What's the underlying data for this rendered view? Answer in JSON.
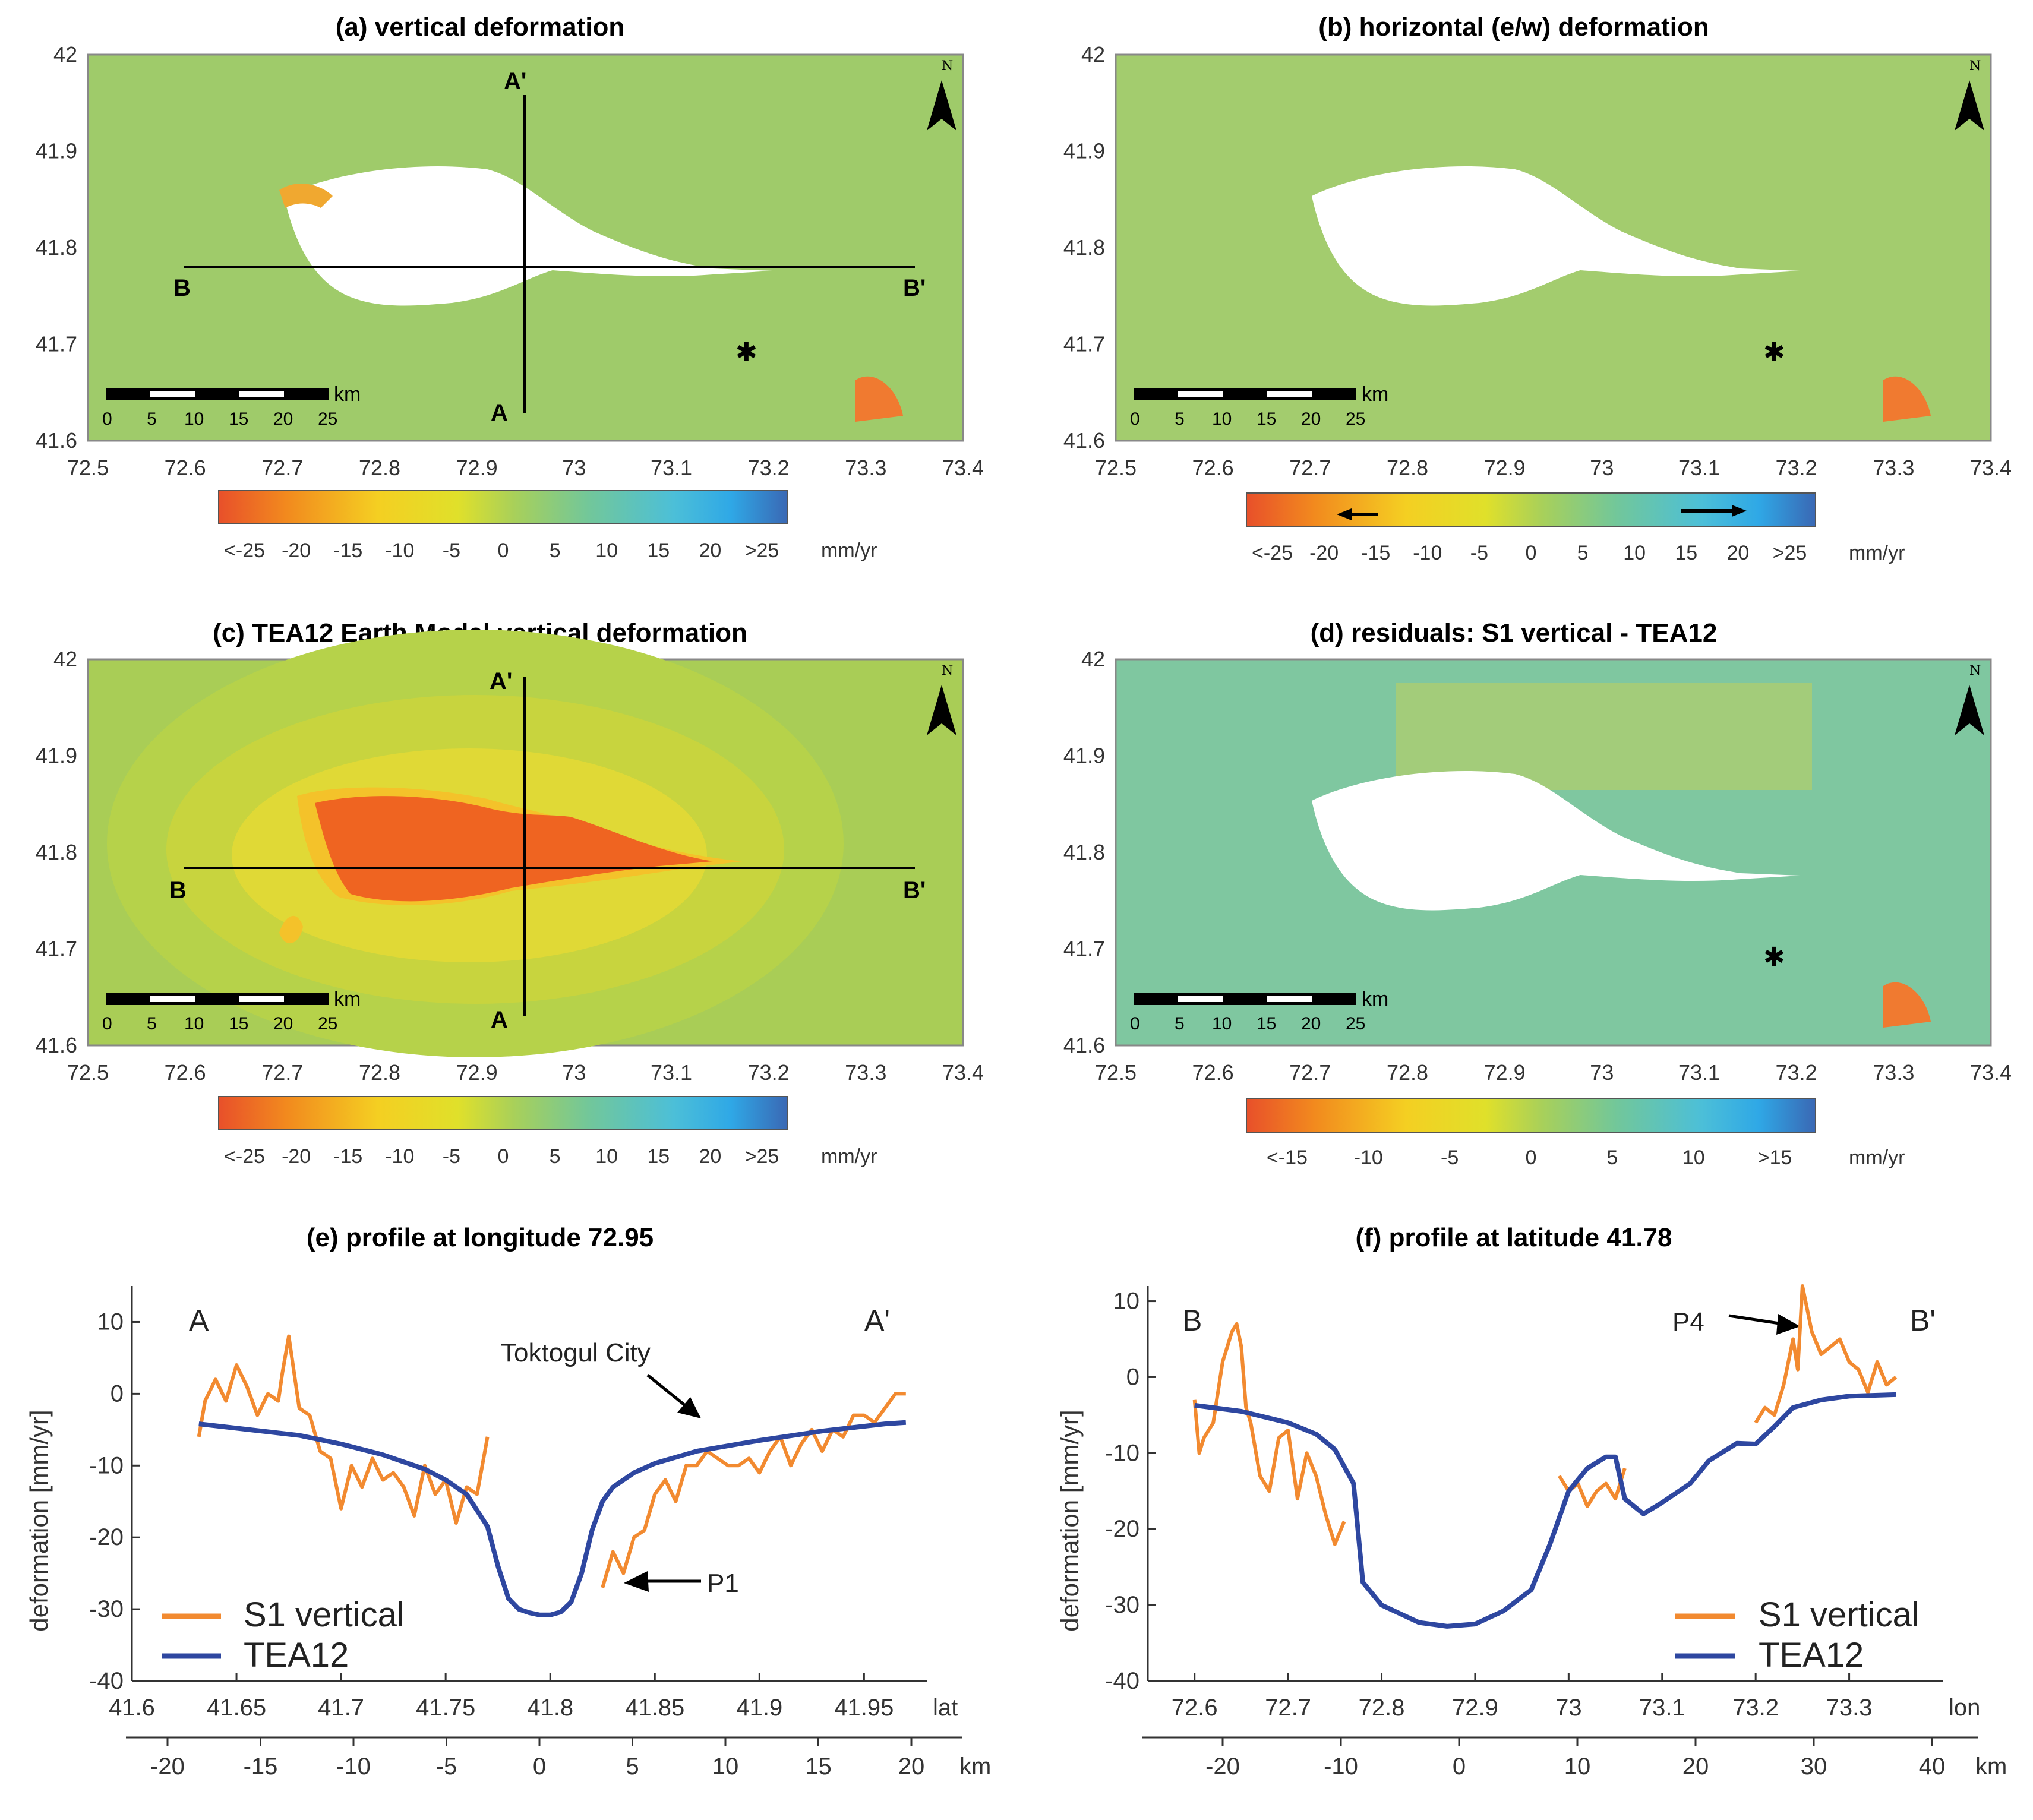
{
  "panels": {
    "a": {
      "title": "(a) vertical deformation",
      "colorbar": {
        "ticks": [
          "<-25",
          "-20",
          "-15",
          "-10",
          "-5",
          "0",
          "5",
          "10",
          "15",
          "20",
          ">25"
        ],
        "unit": "mm/yr"
      },
      "section_labels": {
        "A": "A",
        "A_prime": "A'",
        "B": "B",
        "B_prime": "B'"
      }
    },
    "b": {
      "title": "(b) horizontal (e/w) deformation",
      "colorbar": {
        "ticks": [
          "<-25",
          "-20",
          "-15",
          "-10",
          "-5",
          "0",
          "5",
          "10",
          "15",
          "20",
          ">25"
        ],
        "unit": "mm/yr"
      }
    },
    "c": {
      "title": "(c) TEA12 Earth Model vertical deformation",
      "colorbar": {
        "ticks": [
          "<-25",
          "-20",
          "-15",
          "-10",
          "-5",
          "0",
          "5",
          "10",
          "15",
          "20",
          ">25"
        ],
        "unit": "mm/yr"
      },
      "section_labels": {
        "A": "A",
        "A_prime": "A'",
        "B": "B",
        "B_prime": "B'"
      }
    },
    "d": {
      "title": "(d) residuals: S1 vertical - TEA12",
      "colorbar": {
        "ticks": [
          "<-15",
          "-10",
          "-5",
          "0",
          "5",
          "10",
          ">15"
        ],
        "unit": "mm/yr"
      }
    },
    "e": {
      "title": "(e) profile at longitude 72.95",
      "ylabel": "deformation [mm/yr]",
      "x_axis_label": "lat",
      "km_axis_label": "km",
      "ends": {
        "left": "A",
        "right": "A'"
      },
      "annotations": {
        "city": "Toktogul City",
        "p1": "P1"
      }
    },
    "f": {
      "title": "(f) profile at latitude 41.78",
      "ylabel": "deformation [mm/yr]",
      "x_axis_label": "lon",
      "km_axis_label": "km",
      "ends": {
        "left": "B",
        "right": "B'"
      },
      "annotations": {
        "p4": "P4"
      }
    }
  },
  "map_axes": {
    "x_ticks": [
      "72.5",
      "72.6",
      "72.7",
      "72.8",
      "72.9",
      "73",
      "73.1",
      "73.2",
      "73.3",
      "73.4"
    ],
    "y_ticks": [
      "42",
      "41.9",
      "41.8",
      "41.7",
      "41.6"
    ],
    "scalebar_ticks": [
      "0",
      "5",
      "10",
      "15",
      "20",
      "25"
    ],
    "scalebar_unit": "km",
    "north": "N"
  },
  "legend": {
    "s1": "S1 vertical",
    "tea": "TEA12"
  },
  "colors": {
    "s1": "#f28a30",
    "tea": "#2e47a0",
    "map_base": "#9fcb6a",
    "colorbar_neg": "#e8502a",
    "colorbar_pos": "#3a68b4"
  },
  "chart_data": [
    {
      "type": "line",
      "panel": "e",
      "xlabel": "lat",
      "ylabel": "deformation [mm/yr]",
      "xlim": [
        41.6,
        41.98
      ],
      "ylim": [
        -40,
        15
      ],
      "x_ticks": [
        41.6,
        41.65,
        41.7,
        41.75,
        41.8,
        41.85,
        41.9,
        41.95
      ],
      "y_ticks": [
        10,
        0,
        -10,
        -20,
        -30,
        -40
      ],
      "km_ticks": [
        -20,
        -15,
        -10,
        -5,
        0,
        5,
        10,
        15,
        20
      ],
      "series": [
        {
          "name": "S1 vertical",
          "x": [
            41.632,
            41.635,
            41.64,
            41.645,
            41.65,
            41.655,
            41.66,
            41.665,
            41.67,
            41.672,
            41.675,
            41.68,
            41.685,
            41.69,
            41.695,
            41.7,
            41.705,
            41.71,
            41.715,
            41.72,
            41.725,
            41.73,
            41.735,
            41.74,
            41.745,
            41.75,
            41.755,
            41.76,
            41.765,
            41.77,
            41.825,
            41.83,
            41.835,
            41.84,
            41.845,
            41.85,
            41.855,
            41.86,
            41.865,
            41.87,
            41.875,
            41.88,
            41.885,
            41.89,
            41.895,
            41.9,
            41.905,
            41.91,
            41.915,
            41.92,
            41.925,
            41.93,
            41.935,
            41.94,
            41.945,
            41.95,
            41.955,
            41.96,
            41.965,
            41.97
          ],
          "y": [
            -6,
            -1,
            2,
            -1,
            4,
            1,
            -3,
            0,
            -1,
            3,
            8,
            -2,
            -3,
            -8,
            -9,
            -16,
            -10,
            -13,
            -9,
            -12,
            -11,
            -13,
            -17,
            -10,
            -14,
            -12,
            -18,
            -13,
            -14,
            -6,
            -27,
            -22,
            -25,
            -20,
            -19,
            -14,
            -12,
            -15,
            -10,
            -10,
            -8,
            -9,
            -10,
            -10,
            -9,
            -11,
            -8,
            -6,
            -10,
            -7,
            -5,
            -8,
            -5,
            -6,
            -3,
            -3,
            -4,
            -2,
            0,
            0
          ]
        },
        {
          "name": "TEA12",
          "x": [
            41.632,
            41.65,
            41.68,
            41.7,
            41.72,
            41.74,
            41.75,
            41.76,
            41.77,
            41.775,
            41.78,
            41.785,
            41.79,
            41.795,
            41.8,
            41.805,
            41.81,
            41.815,
            41.82,
            41.825,
            41.83,
            41.84,
            41.85,
            41.87,
            41.9,
            41.93,
            41.96,
            41.97
          ],
          "y": [
            -4.2,
            -4.8,
            -5.8,
            -7,
            -8.5,
            -10.5,
            -12,
            -14,
            -18.5,
            -24,
            -28.5,
            -30,
            -30.5,
            -30.8,
            -30.8,
            -30.4,
            -29,
            -25,
            -19,
            -15,
            -13,
            -11,
            -9.7,
            -8,
            -6.5,
            -5.2,
            -4.2,
            -4
          ]
        }
      ]
    },
    {
      "type": "line",
      "panel": "f",
      "xlabel": "lon",
      "ylabel": "deformation [mm/yr]",
      "xlim": [
        72.55,
        73.4
      ],
      "ylim": [
        -40,
        12
      ],
      "x_ticks": [
        72.6,
        72.7,
        72.8,
        72.9,
        73,
        73.1,
        73.2,
        73.3
      ],
      "y_ticks": [
        10,
        0,
        -10,
        -20,
        -30,
        -40
      ],
      "km_ticks": [
        -20,
        -10,
        0,
        10,
        20,
        30,
        40
      ],
      "series": [
        {
          "name": "S1 vertical",
          "x": [
            72.6,
            72.605,
            72.61,
            72.62,
            72.63,
            72.64,
            72.645,
            72.65,
            72.655,
            72.66,
            72.67,
            72.68,
            72.69,
            72.7,
            72.71,
            72.72,
            72.73,
            72.74,
            72.75,
            72.76,
            72.99,
            73.0,
            73.01,
            73.02,
            73.03,
            73.04,
            73.05,
            73.06,
            73.2,
            73.21,
            73.22,
            73.23,
            73.24,
            73.245,
            73.25,
            73.255,
            73.26,
            73.27,
            73.28,
            73.29,
            73.3,
            73.31,
            73.32,
            73.33,
            73.34,
            73.35
          ],
          "y": [
            -3,
            -10,
            -8,
            -6,
            2,
            6,
            7,
            4,
            -4,
            -6,
            -13,
            -15,
            -8,
            -7,
            -16,
            -10,
            -13,
            -18,
            -22,
            -19,
            -13,
            -15,
            -14,
            -17,
            -15,
            -14,
            -16,
            -12,
            -6,
            -4,
            -5,
            -1,
            5,
            1,
            12,
            9,
            6,
            3,
            4,
            5,
            2,
            1,
            -2,
            2,
            -1,
            0
          ]
        },
        {
          "name": "TEA12",
          "x": [
            72.6,
            72.65,
            72.7,
            72.73,
            72.75,
            72.77,
            72.78,
            72.8,
            72.84,
            72.87,
            72.9,
            72.93,
            72.96,
            72.98,
            73.0,
            73.02,
            73.04,
            73.05,
            73.06,
            73.08,
            73.1,
            73.13,
            73.15,
            73.18,
            73.2,
            73.22,
            73.24,
            73.27,
            73.3,
            73.35
          ],
          "y": [
            -3.7,
            -4.5,
            -6,
            -7.5,
            -9.5,
            -14,
            -27,
            -30,
            -32.3,
            -32.8,
            -32.5,
            -30.8,
            -28,
            -22,
            -15,
            -12,
            -10.5,
            -10.5,
            -16,
            -18,
            -16.5,
            -14,
            -11,
            -8.7,
            -8.8,
            -6.5,
            -4,
            -3,
            -2.5,
            -2.3
          ]
        }
      ]
    }
  ]
}
